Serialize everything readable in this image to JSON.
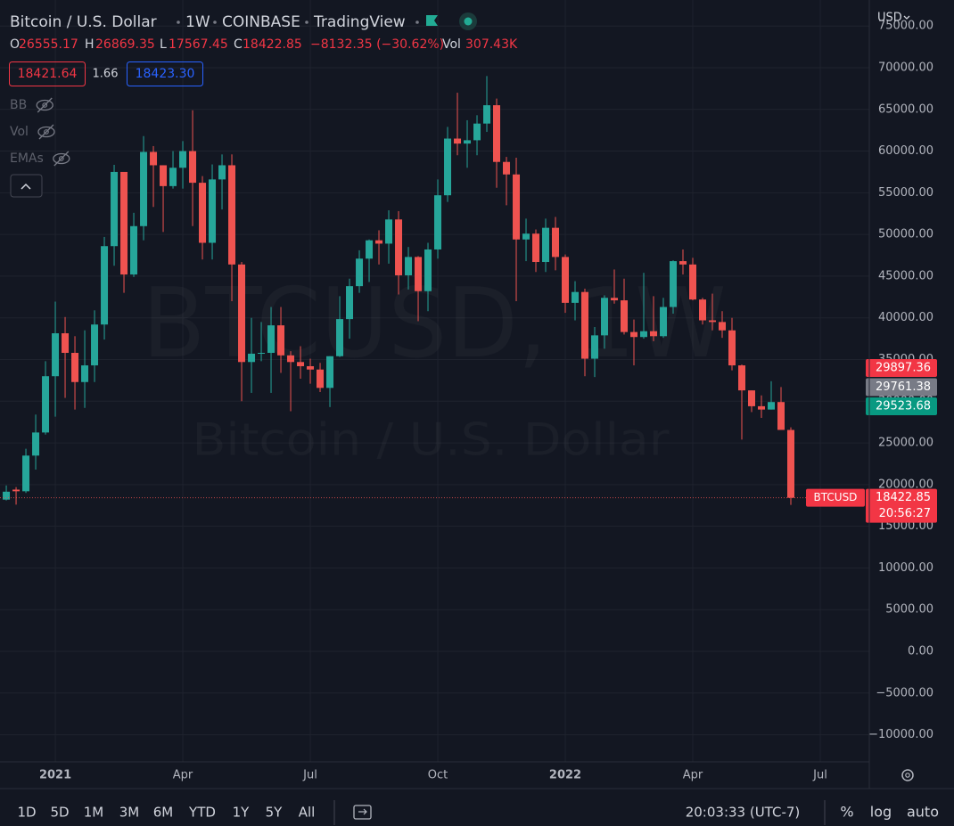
{
  "chart_data": {
    "type": "candlestick",
    "title": "Bitcoin / U.S. Dollar",
    "watermark": [
      "BTCUSD, 1W",
      "Bitcoin / U.S. Dollar"
    ],
    "up_color": "#26a69a",
    "down_color": "#ef5350",
    "open": [
      18200,
      19400,
      19200,
      23480,
      26250,
      33000,
      38150,
      35800,
      32300,
      34300,
      39200,
      48600,
      57500,
      45200,
      51000,
      59900,
      58300,
      55800,
      58000,
      60000,
      56200,
      49000,
      56600,
      58300,
      46400,
      34700,
      35700,
      35800,
      39100,
      35500,
      34700,
      34200,
      33800,
      31600,
      35400,
      39850,
      43800,
      47100,
      49300,
      48900,
      51800,
      45100,
      47300,
      43200,
      48200,
      54700,
      61500,
      60900,
      61300,
      63300,
      65500,
      58700,
      57200,
      49400,
      50100,
      46700,
      50800,
      47300,
      41800,
      43100,
      35100,
      37900,
      42400,
      42100,
      38300,
      37700,
      38400,
      37800,
      41300,
      46800,
      46400,
      42200,
      39700,
      39500,
      38500,
      34300,
      31300,
      29400,
      29000,
      29900,
      26555.17
    ],
    "high": [
      19900,
      19700,
      24300,
      28400,
      34800,
      41950,
      40100,
      37800,
      38500,
      40900,
      49700,
      58350,
      57500,
      52600,
      61800,
      60600,
      58300,
      60000,
      61200,
      64900,
      57000,
      58400,
      59600,
      59600,
      46700,
      40000,
      39500,
      41300,
      41300,
      36000,
      36600,
      35100,
      34600,
      35400,
      42600,
      44700,
      48100,
      49400,
      50500,
      52900,
      52800,
      48500,
      47400,
      49000,
      56600,
      62900,
      67000,
      63700,
      64300,
      69000,
      66300,
      59300,
      59200,
      51900,
      50600,
      51900,
      52100,
      47600,
      44400,
      43500,
      38900,
      42700,
      45800,
      44700,
      39800,
      45400,
      42600,
      42400,
      46900,
      48200,
      47200,
      42400,
      42900,
      40800,
      40000,
      34400,
      31300,
      30700,
      32400,
      31700,
      26869.35
    ],
    "low": [
      18100,
      17600,
      19000,
      21800,
      26000,
      28150,
      30400,
      29000,
      29200,
      32300,
      37400,
      46250,
      43000,
      44900,
      49300,
      53300,
      50300,
      55500,
      55500,
      51000,
      47000,
      47000,
      53000,
      42000,
      30000,
      31000,
      34800,
      31000,
      33400,
      28800,
      32700,
      32100,
      31100,
      29300,
      35300,
      37500,
      43000,
      44300,
      46400,
      46500,
      42800,
      43400,
      39600,
      40800,
      47100,
      53900,
      59500,
      58000,
      59500,
      62300,
      55600,
      53500,
      42000,
      46800,
      45500,
      45500,
      45700,
      40600,
      39700,
      33000,
      32900,
      36300,
      41700,
      38000,
      34300,
      37500,
      37200,
      37600,
      40500,
      45200,
      42100,
      39200,
      38500,
      37600,
      33700,
      25400,
      28700,
      28000,
      29000,
      26600,
      17567.45
    ],
    "close": [
      19150,
      19200,
      23480,
      26250,
      33000,
      38150,
      35800,
      32300,
      34300,
      39200,
      48600,
      57500,
      45200,
      51000,
      59900,
      58300,
      55800,
      58000,
      60000,
      56200,
      49000,
      56600,
      58300,
      46400,
      34700,
      35700,
      35800,
      39100,
      35500,
      34700,
      34200,
      33800,
      31600,
      35400,
      39850,
      43800,
      47100,
      49300,
      48900,
      51800,
      45100,
      47300,
      43200,
      48200,
      54700,
      61500,
      60900,
      61300,
      63300,
      65500,
      58700,
      57200,
      49400,
      50100,
      46700,
      50800,
      47300,
      41800,
      43100,
      35100,
      37900,
      42400,
      42100,
      38300,
      37700,
      38400,
      37800,
      41300,
      46800,
      46400,
      42200,
      39700,
      39500,
      38500,
      34300,
      31300,
      29400,
      29000,
      29900,
      26560,
      18422.85
    ],
    "xlim": [
      -0.64,
      88
    ],
    "xticks": [
      {
        "value": 5,
        "label": "2021"
      },
      {
        "value": 18,
        "label": "Apr"
      },
      {
        "value": 31,
        "label": "Jul"
      },
      {
        "value": 44,
        "label": "Oct"
      },
      {
        "value": 57,
        "label": "2022"
      },
      {
        "value": 70,
        "label": "Apr"
      },
      {
        "value": 83,
        "label": "Jul"
      }
    ],
    "ylim": [
      -13250,
      78120
    ],
    "yticks": [
      {
        "value": 75000,
        "label": "75000.00"
      },
      {
        "value": 70000,
        "label": "70000.00"
      },
      {
        "value": 65000,
        "label": "65000.00"
      },
      {
        "value": 60000,
        "label": "60000.00"
      },
      {
        "value": 55000,
        "label": "55000.00"
      },
      {
        "value": 50000,
        "label": "50000.00"
      },
      {
        "value": 45000,
        "label": "45000.00"
      },
      {
        "value": 40000,
        "label": "40000.00"
      },
      {
        "value": 35000,
        "label": "35000.00"
      },
      {
        "value": 30000,
        "label": "30000.00"
      },
      {
        "value": 25000,
        "label": "25000.00"
      },
      {
        "value": 20000,
        "label": "20000.00"
      },
      {
        "value": 15000,
        "label": "15000.00"
      },
      {
        "value": 10000,
        "label": "10000.00"
      },
      {
        "value": 5000,
        "label": "5000.00"
      },
      {
        "value": 0,
        "label": "0.00"
      },
      {
        "value": -5000,
        "label": "−5000.00"
      },
      {
        "value": -10000,
        "label": "−10000.00"
      }
    ],
    "grid": true
  },
  "header": {
    "interval": "1W",
    "exchange": "COINBASE",
    "source": "TradingView",
    "currency": "USD"
  },
  "legend": {
    "ohlc_labels": [
      "O",
      "H",
      "L",
      "C"
    ],
    "change": "−8132.35 (−30.62%)",
    "volume_label": "Vol",
    "volume": "307.43K",
    "bid": "18421.64",
    "spread": "1.66",
    "ask": "18423.30",
    "indicators": [
      "BB",
      "Vol",
      "EMAs"
    ]
  },
  "price_labels": [
    {
      "text": "29897.36",
      "color": "#f23645"
    },
    {
      "text": "29761.38",
      "color": "#787b86"
    },
    {
      "text": "29523.68",
      "color": "#089981"
    }
  ],
  "last_price": {
    "symbol": "BTCUSD",
    "countdown": "20:56:27"
  },
  "toolbar": {
    "ranges": [
      "1D",
      "5D",
      "1M",
      "3M",
      "6M",
      "YTD",
      "1Y",
      "5Y",
      "All"
    ],
    "clock": "20:03:33 (UTC-7)",
    "options": [
      "%",
      "log",
      "auto"
    ]
  }
}
